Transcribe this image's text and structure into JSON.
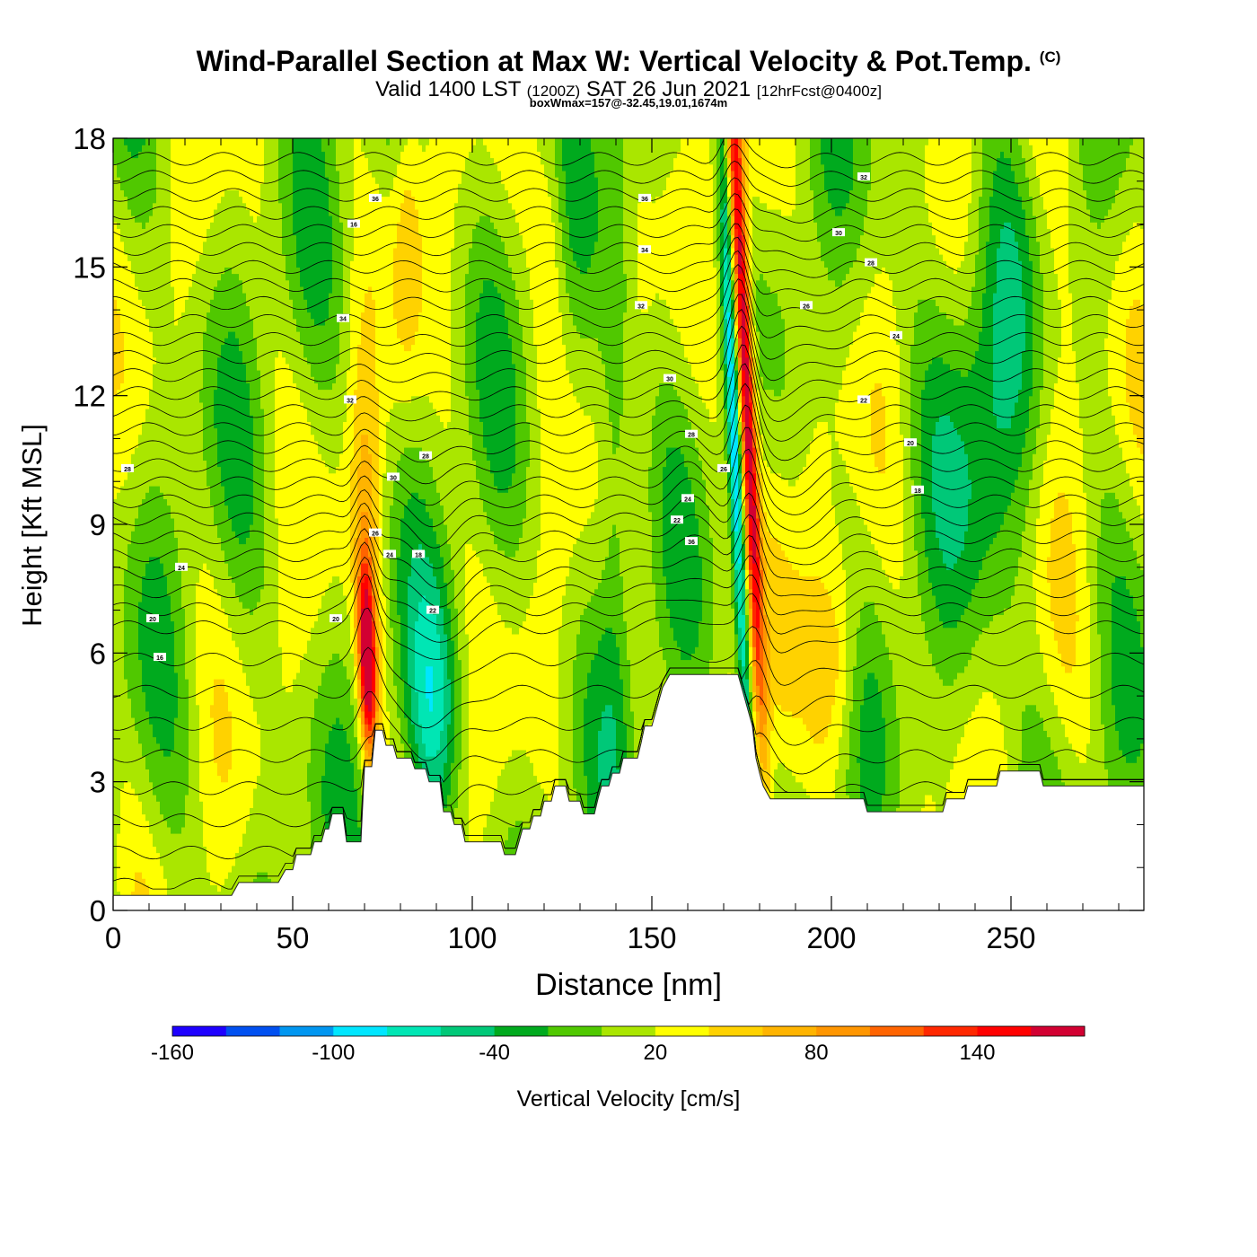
{
  "header": {
    "title": "Wind-Parallel Section at Max W: Vertical Velocity & Pot.Temp.",
    "copyright_mark": "(C)",
    "subtitle_valid": "Valid 1400 LST",
    "subtitle_utc": "(1200Z)",
    "subtitle_date": "SAT 26 Jun 2021",
    "subtitle_forecast": "[12hrFcst@0400z]",
    "subtitle_box": "boxWmax=157@-32.45,19.01,1674m"
  },
  "chart_data": {
    "type": "heatmap",
    "xlabel": "Distance [nm]",
    "ylabel": "Height [Kft MSL]",
    "xlim": [
      0,
      287
    ],
    "ylim": [
      0,
      18
    ],
    "x_ticks": [
      0,
      50,
      100,
      150,
      200,
      250
    ],
    "y_ticks": [
      0,
      3,
      6,
      9,
      12,
      15,
      18
    ],
    "grid": false,
    "colorbar": {
      "label": "Vertical Velocity [cm/s]",
      "bounds": [
        -160,
        -140,
        -120,
        -100,
        -80,
        -60,
        -40,
        -20,
        0,
        20,
        40,
        60,
        80,
        100,
        120,
        140,
        160,
        180
      ],
      "tick_labels": [
        "-160",
        "-100",
        "-40",
        "20",
        "80",
        "140"
      ],
      "colors": [
        "#1e00ff",
        "#0050f0",
        "#0096f0",
        "#00e6ff",
        "#00e6b4",
        "#00c878",
        "#00aa1e",
        "#50c800",
        "#aae600",
        "#ffff00",
        "#ffd200",
        "#ffb400",
        "#ff9600",
        "#ff6400",
        "#ff2800",
        "#ff0000",
        "#d20032"
      ]
    },
    "terrain_kft": [
      [
        0,
        0.35
      ],
      [
        33,
        0.35
      ],
      [
        35,
        0.65
      ],
      [
        46,
        0.65
      ],
      [
        48,
        0.95
      ],
      [
        50,
        0.95
      ],
      [
        51,
        1.3
      ],
      [
        55,
        1.3
      ],
      [
        56,
        1.6
      ],
      [
        58,
        1.6
      ],
      [
        59,
        1.9
      ],
      [
        60,
        1.9
      ],
      [
        61,
        2.25
      ],
      [
        64,
        2.25
      ],
      [
        65,
        1.6
      ],
      [
        69,
        1.6
      ],
      [
        70,
        3.35
      ],
      [
        72,
        3.35
      ],
      [
        73,
        4.2
      ],
      [
        75,
        4.2
      ],
      [
        76,
        3.85
      ],
      [
        78,
        3.85
      ],
      [
        79,
        3.55
      ],
      [
        83,
        3.55
      ],
      [
        84,
        3.3
      ],
      [
        87,
        3.3
      ],
      [
        88,
        3.0
      ],
      [
        91,
        3.0
      ],
      [
        92,
        2.3
      ],
      [
        94,
        2.3
      ],
      [
        95,
        2.0
      ],
      [
        97,
        2.0
      ],
      [
        98,
        1.6
      ],
      [
        108,
        1.6
      ],
      [
        109,
        1.3
      ],
      [
        112,
        1.3
      ],
      [
        113,
        1.6
      ],
      [
        114,
        1.9
      ],
      [
        116,
        1.9
      ],
      [
        117,
        2.2
      ],
      [
        119,
        2.2
      ],
      [
        120,
        2.55
      ],
      [
        122,
        2.55
      ],
      [
        123,
        2.9
      ],
      [
        126,
        2.9
      ],
      [
        127,
        2.55
      ],
      [
        130,
        2.55
      ],
      [
        131,
        2.25
      ],
      [
        134,
        2.25
      ],
      [
        135,
        2.6
      ],
      [
        136,
        2.9
      ],
      [
        138,
        2.9
      ],
      [
        139,
        3.2
      ],
      [
        141,
        3.2
      ],
      [
        142,
        3.55
      ],
      [
        146,
        3.55
      ],
      [
        147,
        3.9
      ],
      [
        148,
        4.3
      ],
      [
        150,
        4.3
      ],
      [
        151,
        4.6
      ],
      [
        152,
        4.9
      ],
      [
        153,
        5.2
      ],
      [
        155,
        5.5
      ],
      [
        174,
        5.5
      ],
      [
        175,
        5.2
      ],
      [
        176,
        4.9
      ],
      [
        177,
        4.6
      ],
      [
        178,
        4.3
      ],
      [
        179,
        3.55
      ],
      [
        180,
        3.2
      ],
      [
        181,
        2.9
      ],
      [
        183,
        2.6
      ],
      [
        209,
        2.6
      ],
      [
        210,
        2.3
      ],
      [
        231,
        2.3
      ],
      [
        232,
        2.6
      ],
      [
        237,
        2.6
      ],
      [
        238,
        2.9
      ],
      [
        246,
        2.9
      ],
      [
        247,
        3.25
      ],
      [
        258,
        3.25
      ],
      [
        259,
        2.9
      ],
      [
        287,
        2.9
      ]
    ],
    "max_updraft": {
      "x_nm": 178,
      "label": "boxWmax=157"
    },
    "theta_contour_labels": [
      "28",
      "24",
      "20",
      "16",
      "16",
      "36",
      "32",
      "30",
      "28",
      "26",
      "24",
      "22",
      "20",
      "18",
      "36",
      "34",
      "32",
      "30",
      "28",
      "26",
      "24",
      "22",
      "36",
      "34",
      "32",
      "30",
      "28",
      "26",
      "24",
      "22",
      "20",
      "18"
    ]
  }
}
